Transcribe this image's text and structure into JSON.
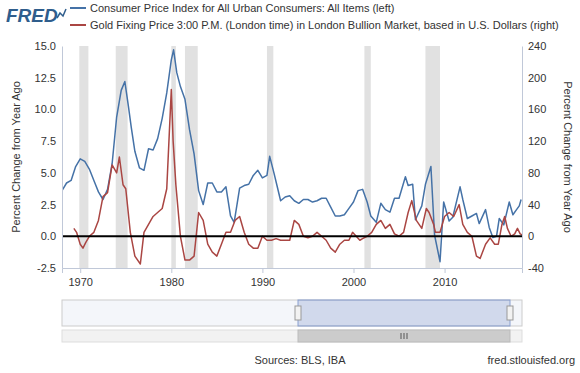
{
  "chart_data": {
    "type": "line",
    "logo": "FRED",
    "source": "Sources: BLS, IBA",
    "credit": "fred.stlouisfed.org",
    "ylabel": "Percent Change from Year Ago",
    "y2label": "Percent Change from Year Ago",
    "legend": "top",
    "grid": false,
    "xlim": [
      1968.0,
      2018.5
    ],
    "xticks": [
      1970,
      1980,
      1990,
      2000,
      2010
    ],
    "ylim": [
      -2.5,
      15
    ],
    "yticks": [
      -2.5,
      {
        "value": 0,
        "label": "0.0"
      },
      2.5,
      {
        "value": 5,
        "label": "5.0"
      },
      7.5,
      {
        "value": 10,
        "label": "10.0"
      },
      12.5,
      {
        "value": 15,
        "label": "15.0"
      }
    ],
    "y2lim": [
      -40,
      240
    ],
    "y2ticks": [
      -40,
      0,
      40,
      80,
      120,
      160,
      200,
      240
    ],
    "hline": 0,
    "recessions": [
      [
        1969.9,
        1970.9
      ],
      [
        1973.9,
        1975.2
      ],
      [
        1980.0,
        1980.5
      ],
      [
        1981.5,
        1982.9
      ],
      [
        1990.5,
        1991.2
      ],
      [
        2001.2,
        2001.9
      ],
      [
        2007.9,
        2009.5
      ]
    ],
    "series": [
      {
        "name": "Consumer Price Index for All Urban Consumers: All Items (left)",
        "color": "#4572a7",
        "axis": "y",
        "x": [
          1968.0,
          1968.5,
          1969.0,
          1969.5,
          1970.0,
          1970.5,
          1971.0,
          1971.5,
          1972.0,
          1972.5,
          1973.0,
          1973.5,
          1974.0,
          1974.5,
          1974.9,
          1975.3,
          1975.6,
          1976.0,
          1976.5,
          1977.0,
          1977.5,
          1978.0,
          1978.5,
          1979.0,
          1979.5,
          1980.0,
          1980.25,
          1980.6,
          1981.0,
          1981.5,
          1982.0,
          1982.5,
          1983.0,
          1983.5,
          1984.0,
          1984.5,
          1985.0,
          1985.5,
          1986.0,
          1986.5,
          1986.9,
          1987.5,
          1988.0,
          1988.5,
          1989.0,
          1989.5,
          1990.0,
          1990.5,
          1990.8,
          1991.3,
          1991.6,
          1992.0,
          1992.5,
          1993.0,
          1993.5,
          1994.0,
          1994.5,
          1995.0,
          1995.5,
          1996.0,
          1996.5,
          1997.0,
          1997.5,
          1998.0,
          1998.5,
          1999.0,
          1999.5,
          2000.0,
          2000.5,
          2001.0,
          2001.5,
          2001.9,
          2002.5,
          2003.0,
          2003.5,
          2004.0,
          2004.5,
          2005.0,
          2005.7,
          2006.0,
          2006.5,
          2006.8,
          2007.5,
          2007.9,
          2008.5,
          2008.9,
          2009.5,
          2009.9,
          2010.5,
          2010.9,
          2011.7,
          2012.0,
          2012.5,
          2013.0,
          2013.5,
          2013.8,
          2014.5,
          2014.9,
          2015.3,
          2015.7,
          2016.0,
          2016.5,
          2017.1,
          2017.5,
          2017.9,
          2018.2,
          2018.4
        ],
        "values": [
          3.6,
          4.2,
          4.4,
          5.5,
          6.1,
          5.9,
          5.3,
          4.4,
          3.5,
          2.9,
          3.7,
          5.7,
          9.4,
          11.5,
          12.2,
          10.2,
          8.6,
          6.7,
          5.4,
          5.2,
          6.9,
          6.8,
          7.7,
          9.3,
          11.3,
          13.9,
          14.7,
          12.9,
          11.8,
          10.8,
          8.4,
          6.5,
          3.6,
          2.5,
          4.2,
          4.2,
          3.5,
          3.5,
          3.9,
          1.6,
          1.1,
          3.8,
          4.0,
          4.1,
          4.8,
          5.2,
          4.6,
          4.8,
          6.3,
          4.9,
          4.0,
          2.8,
          3.1,
          3.2,
          2.8,
          2.6,
          2.9,
          2.9,
          2.7,
          2.8,
          3.0,
          3.0,
          2.3,
          1.6,
          1.6,
          1.7,
          2.2,
          2.7,
          3.6,
          3.7,
          2.7,
          1.6,
          1.1,
          2.6,
          2.1,
          1.9,
          3.0,
          3.0,
          4.7,
          4.0,
          4.1,
          1.3,
          2.4,
          4.1,
          5.5,
          0.1,
          -2.0,
          2.7,
          1.2,
          1.5,
          3.9,
          2.9,
          1.4,
          1.6,
          1.8,
          1.0,
          2.1,
          0.7,
          -0.1,
          0.0,
          1.4,
          0.9,
          2.7,
          1.7,
          2.1,
          2.4,
          2.9
        ]
      },
      {
        "name": "Gold Fixing Price 3:00 P.M. (London time) in London Bullion Market, based in U.S. Dollars (right)",
        "color": "#aa4643",
        "axis": "y2",
        "x": [
          1969.3,
          1969.6,
          1970.0,
          1970.3,
          1970.6,
          1971.0,
          1971.5,
          1972.0,
          1972.5,
          1973.0,
          1973.5,
          1974.0,
          1974.3,
          1974.7,
          1975.0,
          1975.5,
          1976.0,
          1976.6,
          1977.0,
          1977.5,
          1978.0,
          1978.5,
          1979.0,
          1979.5,
          1980.0,
          1980.2,
          1980.5,
          1981.0,
          1981.5,
          1982.0,
          1982.5,
          1983.0,
          1983.5,
          1984.0,
          1984.5,
          1985.0,
          1985.5,
          1986.0,
          1986.5,
          1987.0,
          1987.5,
          1988.0,
          1988.5,
          1989.0,
          1989.5,
          1990.0,
          1990.5,
          1991.0,
          1991.5,
          1992.0,
          1992.5,
          1993.0,
          1993.5,
          1994.0,
          1994.5,
          1995.0,
          1995.5,
          1996.0,
          1996.5,
          1997.0,
          1997.5,
          1998.0,
          1998.5,
          1999.0,
          1999.5,
          1999.9,
          2000.3,
          2000.7,
          2001.0,
          2001.5,
          2002.0,
          2002.5,
          2003.0,
          2003.5,
          2004.0,
          2004.5,
          2005.0,
          2005.5,
          2006.0,
          2006.4,
          2006.9,
          2007.5,
          2008.0,
          2008.3,
          2008.8,
          2009.0,
          2009.5,
          2010.0,
          2010.5,
          2011.0,
          2011.6,
          2012.0,
          2012.5,
          2013.0,
          2013.5,
          2013.9,
          2014.5,
          2015.0,
          2015.5,
          2015.9,
          2016.3,
          2016.6,
          2016.9,
          2017.3,
          2017.7,
          2018.0,
          2018.3,
          2018.5
        ],
        "values": [
          10,
          5,
          -10,
          -15,
          -8,
          0,
          5,
          20,
          50,
          55,
          90,
          80,
          100,
          65,
          60,
          5,
          -25,
          -35,
          5,
          15,
          25,
          30,
          35,
          60,
          185,
          120,
          65,
          0,
          -30,
          -30,
          -25,
          30,
          20,
          -10,
          -20,
          -25,
          -10,
          5,
          5,
          20,
          25,
          5,
          -10,
          -15,
          -15,
          0,
          -5,
          -5,
          -3,
          -5,
          -5,
          -5,
          20,
          15,
          0,
          -2,
          0,
          5,
          0,
          -5,
          -15,
          -20,
          -10,
          -5,
          -5,
          5,
          0,
          -5,
          -3,
          0,
          5,
          15,
          20,
          10,
          15,
          3,
          0,
          5,
          30,
          45,
          20,
          10,
          35,
          30,
          15,
          5,
          5,
          25,
          30,
          25,
          40,
          15,
          5,
          0,
          -25,
          -28,
          -10,
          -2,
          -10,
          -10,
          15,
          25,
          10,
          0,
          3,
          10,
          3,
          2
        ]
      }
    ]
  }
}
